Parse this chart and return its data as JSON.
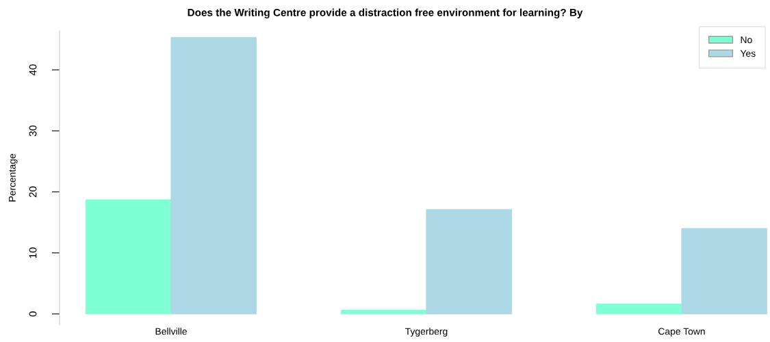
{
  "chart_data": {
    "type": "bar",
    "title": "Does the Writing Centre provide a distraction free environment for learning? By",
    "ylabel": "Percentage",
    "categories": [
      "Bellville",
      "Tygerberg",
      "Cape Town"
    ],
    "series": [
      {
        "name": "No",
        "color": "#7fffd4",
        "values": [
          18.7,
          0.6,
          1.6
        ]
      },
      {
        "name": "Yes",
        "color": "#add8e6",
        "values": [
          45.3,
          17.1,
          14.0
        ]
      }
    ],
    "ylim": [
      -1.8,
      46.4
    ],
    "yticks": [
      0,
      10,
      20,
      30,
      40
    ],
    "legend": "top right",
    "grid": false
  }
}
